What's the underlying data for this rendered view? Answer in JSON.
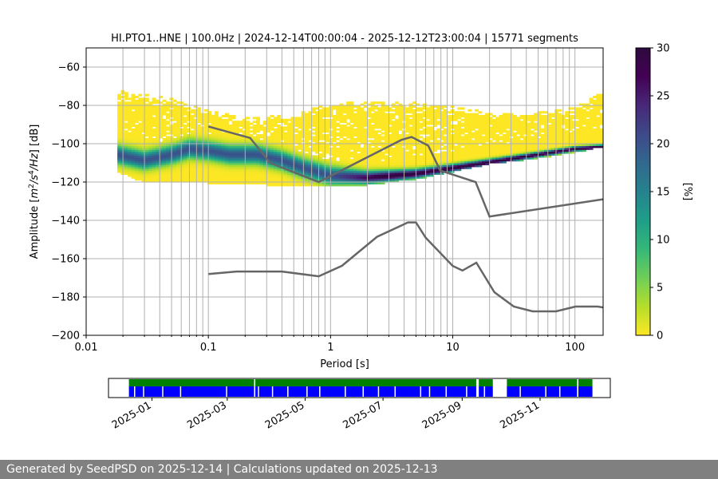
{
  "chart_data": [
    {
      "type": "heatmap",
      "name": "ppsd",
      "title": "HI.PTO1..HNE | 100.0Hz | 2024-12-14T00:00:04 - 2025-12-12T23:00:04 | 15771 segments",
      "xlabel": "Period [s]",
      "ylabel": "Amplitude [m²/s⁴/Hz] [dB]",
      "xscale": "log",
      "xlim": [
        0.01,
        170
      ],
      "ylim": [
        -200,
        -50
      ],
      "x_ticks": [
        0.01,
        0.1,
        1,
        10,
        100
      ],
      "x_tick_labels": [
        "0.01",
        "0.1",
        "1",
        "10",
        "100"
      ],
      "y_ticks": [
        -200,
        -180,
        -160,
        -140,
        -120,
        -100,
        -80,
        -60
      ],
      "y_tick_labels": [
        "−200",
        "−180",
        "−160",
        "−140",
        "−120",
        "−100",
        "−80",
        "−60"
      ],
      "grid": true,
      "period_range": [
        0.018,
        170
      ],
      "envelope_top": [
        [
          0.018,
          -73
        ],
        [
          0.05,
          -78
        ],
        [
          0.1,
          -84
        ],
        [
          0.2,
          -88
        ],
        [
          0.5,
          -86
        ],
        [
          1,
          -80
        ],
        [
          2,
          -79
        ],
        [
          5,
          -80
        ],
        [
          10,
          -82
        ],
        [
          20,
          -85
        ],
        [
          50,
          -85
        ],
        [
          100,
          -82
        ],
        [
          170,
          -74
        ]
      ],
      "envelope_bottom": [
        [
          0.018,
          -114
        ],
        [
          0.03,
          -120
        ],
        [
          0.1,
          -120
        ],
        [
          0.3,
          -121
        ],
        [
          1,
          -122
        ],
        [
          2,
          -121
        ],
        [
          5,
          -118
        ],
        [
          10,
          -114
        ],
        [
          20,
          -110
        ],
        [
          50,
          -107
        ],
        [
          100,
          -104
        ],
        [
          170,
          -101
        ]
      ],
      "mode_curve": [
        [
          0.018,
          -106
        ],
        [
          0.03,
          -109
        ],
        [
          0.05,
          -106
        ],
        [
          0.07,
          -103
        ],
        [
          0.1,
          -104
        ],
        [
          0.15,
          -106
        ],
        [
          0.25,
          -106
        ],
        [
          0.4,
          -109
        ],
        [
          0.6,
          -113
        ],
        [
          1,
          -117
        ],
        [
          2,
          -118
        ],
        [
          5,
          -116
        ],
        [
          10,
          -113
        ],
        [
          20,
          -110
        ],
        [
          50,
          -106
        ],
        [
          100,
          -103
        ],
        [
          170,
          -102
        ]
      ],
      "nhnm_curve": [
        [
          0.1,
          -91
        ],
        [
          0.22,
          -97
        ],
        [
          0.32,
          -110
        ],
        [
          0.8,
          -120
        ],
        [
          3.8,
          -98
        ],
        [
          4.6,
          -96.5
        ],
        [
          6.3,
          -101
        ],
        [
          7.9,
          -114
        ],
        [
          15.4,
          -120
        ],
        [
          20,
          -138
        ],
        [
          170,
          -129
        ]
      ],
      "nlnm_curve": [
        [
          0.1,
          -168
        ],
        [
          0.17,
          -166.7
        ],
        [
          0.4,
          -166.7
        ],
        [
          0.8,
          -169.2
        ],
        [
          1.24,
          -163.7
        ],
        [
          2.4,
          -148.6
        ],
        [
          4.3,
          -141.1
        ],
        [
          5,
          -141.1
        ],
        [
          6,
          -149
        ],
        [
          10,
          -163.8
        ],
        [
          12,
          -166.2
        ],
        [
          15.6,
          -162.1
        ],
        [
          21.9,
          -177.5
        ],
        [
          31.6,
          -185
        ],
        [
          45,
          -187.5
        ],
        [
          70,
          -187.5
        ],
        [
          101,
          -185
        ],
        [
          154,
          -185
        ],
        [
          170,
          -185.5
        ]
      ],
      "colorbar": {
        "label": "[%]",
        "ticks": [
          "0",
          "5",
          "10",
          "15",
          "20",
          "25",
          "30"
        ],
        "range": [
          0,
          30
        ]
      }
    },
    {
      "type": "timeline",
      "name": "data-coverage",
      "tick_labels": [
        "2025-01",
        "2025-03",
        "2025-05",
        "2025-07",
        "2025-09",
        "2025-11"
      ],
      "green_segments": [
        [
          "2024-12-14",
          "2025-03-22"
        ],
        [
          "2025-03-23",
          "2025-09-12"
        ],
        [
          "2025-09-14",
          "2025-09-25"
        ],
        [
          "2025-10-06",
          "2025-11-30"
        ],
        [
          "2025-12-01",
          "2025-12-12"
        ]
      ],
      "blue_gaps": [
        "2024-12-18",
        "2024-12-25",
        "2025-01-09",
        "2025-01-23",
        "2025-02-28",
        "2025-03-25",
        "2025-04-05",
        "2025-04-17",
        "2025-05-02",
        "2025-05-12",
        "2025-06-01",
        "2025-06-15",
        "2025-06-27",
        "2025-07-10",
        "2025-07-30",
        "2025-08-06",
        "2025-08-19",
        "2025-09-04",
        "2025-09-18",
        "2025-10-16",
        "2025-11-05",
        "2025-11-16",
        "2025-11-30"
      ]
    }
  ],
  "footer": {
    "text": "Generated by SeedPSD on 2025-12-14 | Calculations updated on 2025-12-13"
  },
  "colors": {
    "nm_curve": "#666666",
    "grid": "#b0b0b0",
    "timeline_green": "#008000",
    "timeline_blue": "#0000ff",
    "footer_bg": "#808080"
  }
}
